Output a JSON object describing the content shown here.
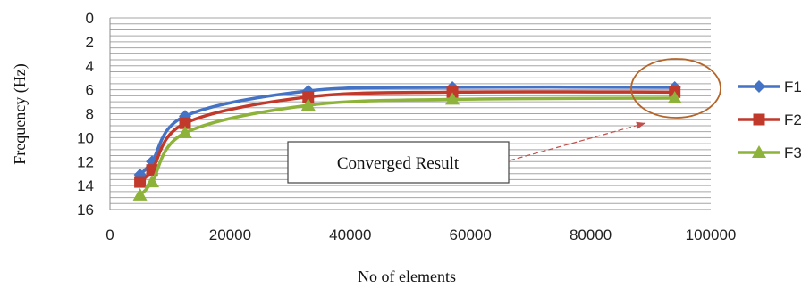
{
  "chart_data": {
    "type": "line",
    "title": "",
    "xlabel": "No of elements",
    "ylabel": "Frequency (Hz)",
    "xlim": [
      0,
      100000
    ],
    "ylim": [
      0,
      16
    ],
    "y_inverted": true,
    "x_ticks": [
      "0",
      "20000",
      "40000",
      "60000",
      "80000",
      "100000"
    ],
    "y_ticks": [
      "0",
      "2",
      "4",
      "6",
      "8",
      "10",
      "12",
      "14",
      "16"
    ],
    "grid": "horizontal",
    "legend_position": "right",
    "series": [
      {
        "name": "F1",
        "color": "#4472c4",
        "marker": "diamond",
        "points": [
          [
            5000,
            13.1
          ],
          [
            7000,
            12.0
          ],
          [
            12500,
            8.2
          ],
          [
            33000,
            6.1
          ],
          [
            57000,
            5.8
          ],
          [
            94000,
            5.8
          ]
        ]
      },
      {
        "name": "F2",
        "color": "#c0392b",
        "marker": "square",
        "points": [
          [
            5000,
            13.7
          ],
          [
            7000,
            12.7
          ],
          [
            12500,
            8.8
          ],
          [
            33000,
            6.6
          ],
          [
            57000,
            6.2
          ],
          [
            94000,
            6.2
          ]
        ]
      },
      {
        "name": "F3",
        "color": "#8db33a",
        "marker": "triangle",
        "points": [
          [
            5000,
            14.8
          ],
          [
            7000,
            13.7
          ],
          [
            12500,
            9.6
          ],
          [
            33000,
            7.3
          ],
          [
            57000,
            6.8
          ],
          [
            94000,
            6.7
          ]
        ]
      }
    ],
    "annotation": {
      "text": "Converged Result",
      "arrow_color": "#c0504d",
      "ellipse_color": "#b5652a"
    }
  }
}
